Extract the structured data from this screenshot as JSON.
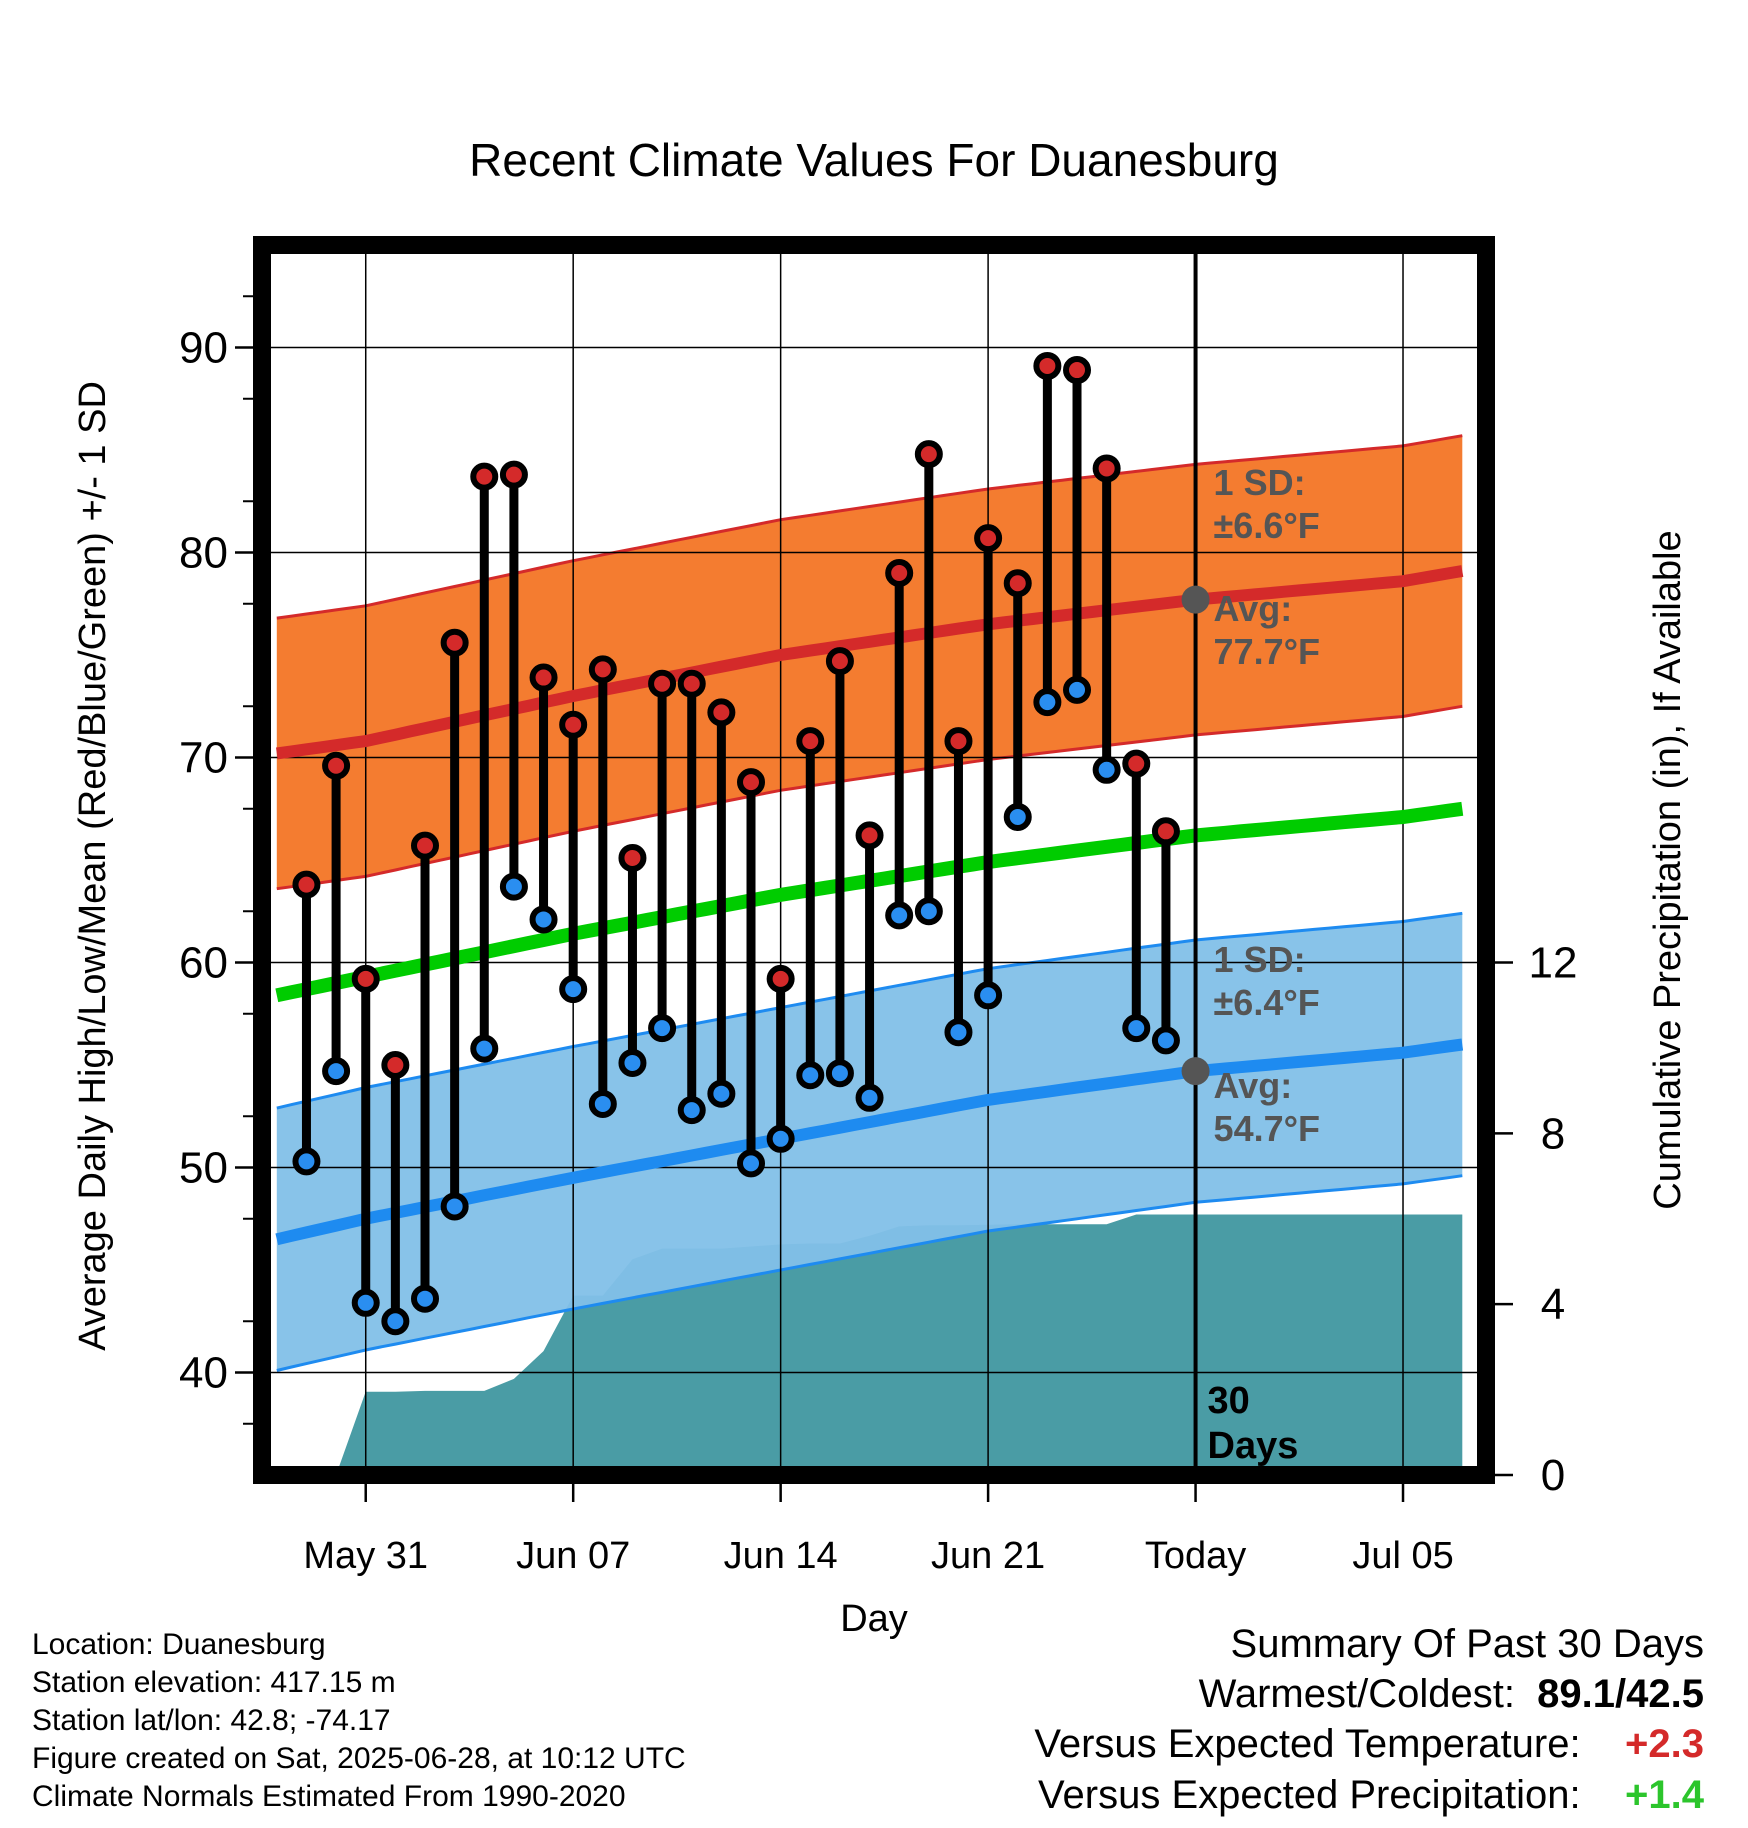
{
  "chart_data": {
    "type": "line",
    "title": "Recent Climate Values For Duanesburg",
    "xlabel": "Day",
    "ylabel": "Average Daily High/Low/Mean (Red/Blue/Green) +/- 1 SD",
    "ylabel2": "Cumulative Precipitation (in), If Available",
    "xlim": [
      -3.5,
      37.8
    ],
    "ylim": [
      35,
      95
    ],
    "y2lim": [
      0,
      28.8
    ],
    "x_ticks": [
      {
        "x": 0,
        "label": "May 31"
      },
      {
        "x": 7,
        "label": "Jun 07"
      },
      {
        "x": 14,
        "label": "Jun 14"
      },
      {
        "x": 21,
        "label": "Jun 21"
      },
      {
        "x": 28,
        "label": "Today"
      },
      {
        "x": 35,
        "label": "Jul 05"
      }
    ],
    "y_ticks": [
      40,
      50,
      60,
      70,
      80,
      90
    ],
    "y2_ticks": [
      0,
      4,
      8,
      12
    ],
    "grid": true,
    "today_x": 28,
    "today_label": [
      "30",
      "Days"
    ],
    "x": [
      -2,
      -1,
      0,
      1,
      2,
      3,
      4,
      5,
      6,
      7,
      8,
      9,
      10,
      11,
      12,
      13,
      14,
      15,
      16,
      17,
      18,
      19,
      20,
      21,
      22,
      23,
      24,
      25,
      26,
      27
    ],
    "daily_high": [
      63.8,
      69.6,
      59.2,
      55.0,
      65.7,
      75.6,
      83.7,
      83.8,
      73.9,
      71.6,
      74.3,
      65.1,
      73.6,
      73.6,
      72.2,
      68.8,
      59.2,
      70.8,
      74.7,
      66.2,
      79.0,
      84.8,
      70.8,
      80.7,
      78.5,
      89.1,
      88.9,
      84.1,
      69.7,
      66.4
    ],
    "daily_low": [
      50.3,
      54.7,
      43.4,
      42.5,
      43.6,
      48.1,
      55.8,
      63.7,
      62.1,
      58.7,
      53.1,
      55.1,
      56.8,
      52.8,
      53.6,
      50.2,
      51.4,
      54.5,
      54.6,
      53.4,
      62.3,
      62.5,
      56.6,
      58.4,
      67.1,
      72.7,
      73.3,
      69.4,
      56.8,
      56.2
    ],
    "normal_x": [
      -3,
      0,
      7,
      14,
      21,
      28,
      35,
      37
    ],
    "normal_high": [
      70.2,
      70.8,
      73.0,
      75.0,
      76.5,
      77.7,
      78.6,
      79.1
    ],
    "normal_high_sd": 6.6,
    "normal_low": [
      46.5,
      47.5,
      49.5,
      51.4,
      53.3,
      54.7,
      55.6,
      56.0
    ],
    "normal_low_sd": 6.4,
    "normal_mean": [
      58.4,
      59.3,
      61.4,
      63.3,
      64.9,
      66.2,
      67.1,
      67.5
    ],
    "precip_x": [
      -1,
      0,
      1,
      2,
      3,
      4,
      5,
      6,
      7,
      7.5,
      8,
      9,
      10,
      11,
      12,
      13,
      14,
      15,
      16,
      17,
      18,
      19,
      20,
      21,
      22,
      23,
      24,
      25,
      26,
      27,
      28,
      37
    ],
    "precip_cumulative": [
      0,
      1.95,
      1.95,
      1.97,
      1.97,
      1.97,
      2.25,
      2.9,
      4.2,
      4.2,
      4.2,
      5.05,
      5.3,
      5.3,
      5.3,
      5.35,
      5.4,
      5.42,
      5.42,
      5.6,
      5.82,
      5.85,
      5.85,
      5.86,
      5.87,
      5.87,
      5.87,
      5.87,
      6.1,
      6.1,
      6.1,
      6.1
    ],
    "annotations": {
      "high_sd": [
        "1 SD:",
        "±6.6°F"
      ],
      "high_avg": [
        "Avg:",
        "77.7°F"
      ],
      "low_sd": [
        "1 SD:",
        "±6.4°F"
      ],
      "low_avg": [
        "Avg:",
        "54.7°F"
      ]
    }
  },
  "info": {
    "location": "Location: Duanesburg",
    "elevation": "Station elevation: 417.15 m",
    "latlon": "Station lat/lon: 42.8; -74.17",
    "created": "Figure created on Sat, 2025-06-28, at 10:12 UTC",
    "normals": "Climate Normals Estimated From 1990-2020"
  },
  "summary": {
    "title": "Summary Of Past 30 Days",
    "warm_cold_label": "Warmest/Coldest:",
    "warm_cold_value": "89.1/42.5",
    "temp_label": "Versus Expected Temperature:",
    "temp_value": "+2.3",
    "precip_label": "Versus Expected Precipitation:",
    "precip_value": "+1.4"
  },
  "colors": {
    "high_band": "#f47c30",
    "high_line": "#d42a2a",
    "low_band": "#82c0e8",
    "low_line": "#1e8bf0",
    "mean_line": "#00cc00",
    "precip": "#4a9ca5",
    "high_dot": "#d42a2a",
    "low_dot": "#2a8ef0",
    "annotation": "#555555",
    "positive_temp": "#d42a2a",
    "positive_precip": "#2cc52c"
  }
}
